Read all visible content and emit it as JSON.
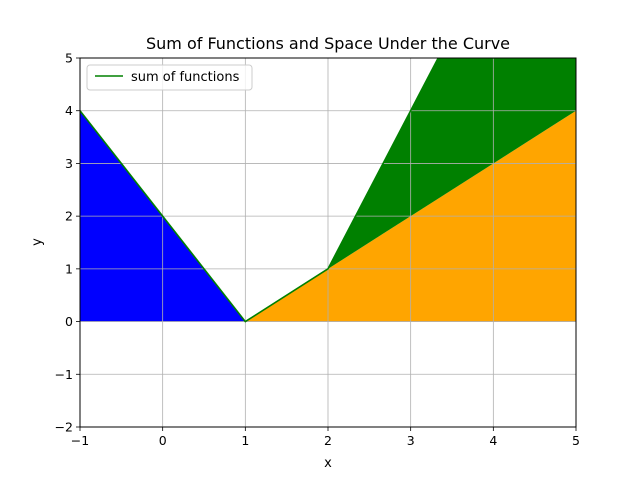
{
  "chart_data": {
    "type": "line",
    "title": "Sum of Functions and Space Under the Curve",
    "xlabel": "x",
    "ylabel": "y",
    "xlim": [
      -1,
      5
    ],
    "ylim": [
      -2,
      5
    ],
    "xticks": [
      -1,
      0,
      1,
      2,
      3,
      4,
      5
    ],
    "yticks": [
      -2,
      -1,
      0,
      1,
      2,
      3,
      4,
      5
    ],
    "xtick_labels": [
      "−1",
      "0",
      "1",
      "2",
      "3",
      "4",
      "5"
    ],
    "ytick_labels": [
      "−2",
      "−1",
      "0",
      "1",
      "2",
      "3",
      "4",
      "5"
    ],
    "grid": true,
    "legend_position": "top-left",
    "series": [
      {
        "name": "sum of functions",
        "color": "#008000",
        "x": [
          -1,
          1,
          2,
          3.333,
          5
        ],
        "y": [
          4,
          0,
          1,
          5,
          5
        ]
      }
    ],
    "fills": [
      {
        "color": "#0000ff",
        "x": [
          -1,
          1
        ],
        "lower": [
          0,
          0
        ],
        "upper": [
          4,
          0
        ]
      },
      {
        "color": "#ffa500",
        "x": [
          1,
          5
        ],
        "lower": [
          0,
          0
        ],
        "upper": [
          0,
          4
        ]
      },
      {
        "color": "#008000",
        "x": [
          2,
          3.333,
          5
        ],
        "lower": [
          1,
          2.333,
          4
        ],
        "upper": [
          1,
          5,
          5
        ]
      }
    ]
  }
}
